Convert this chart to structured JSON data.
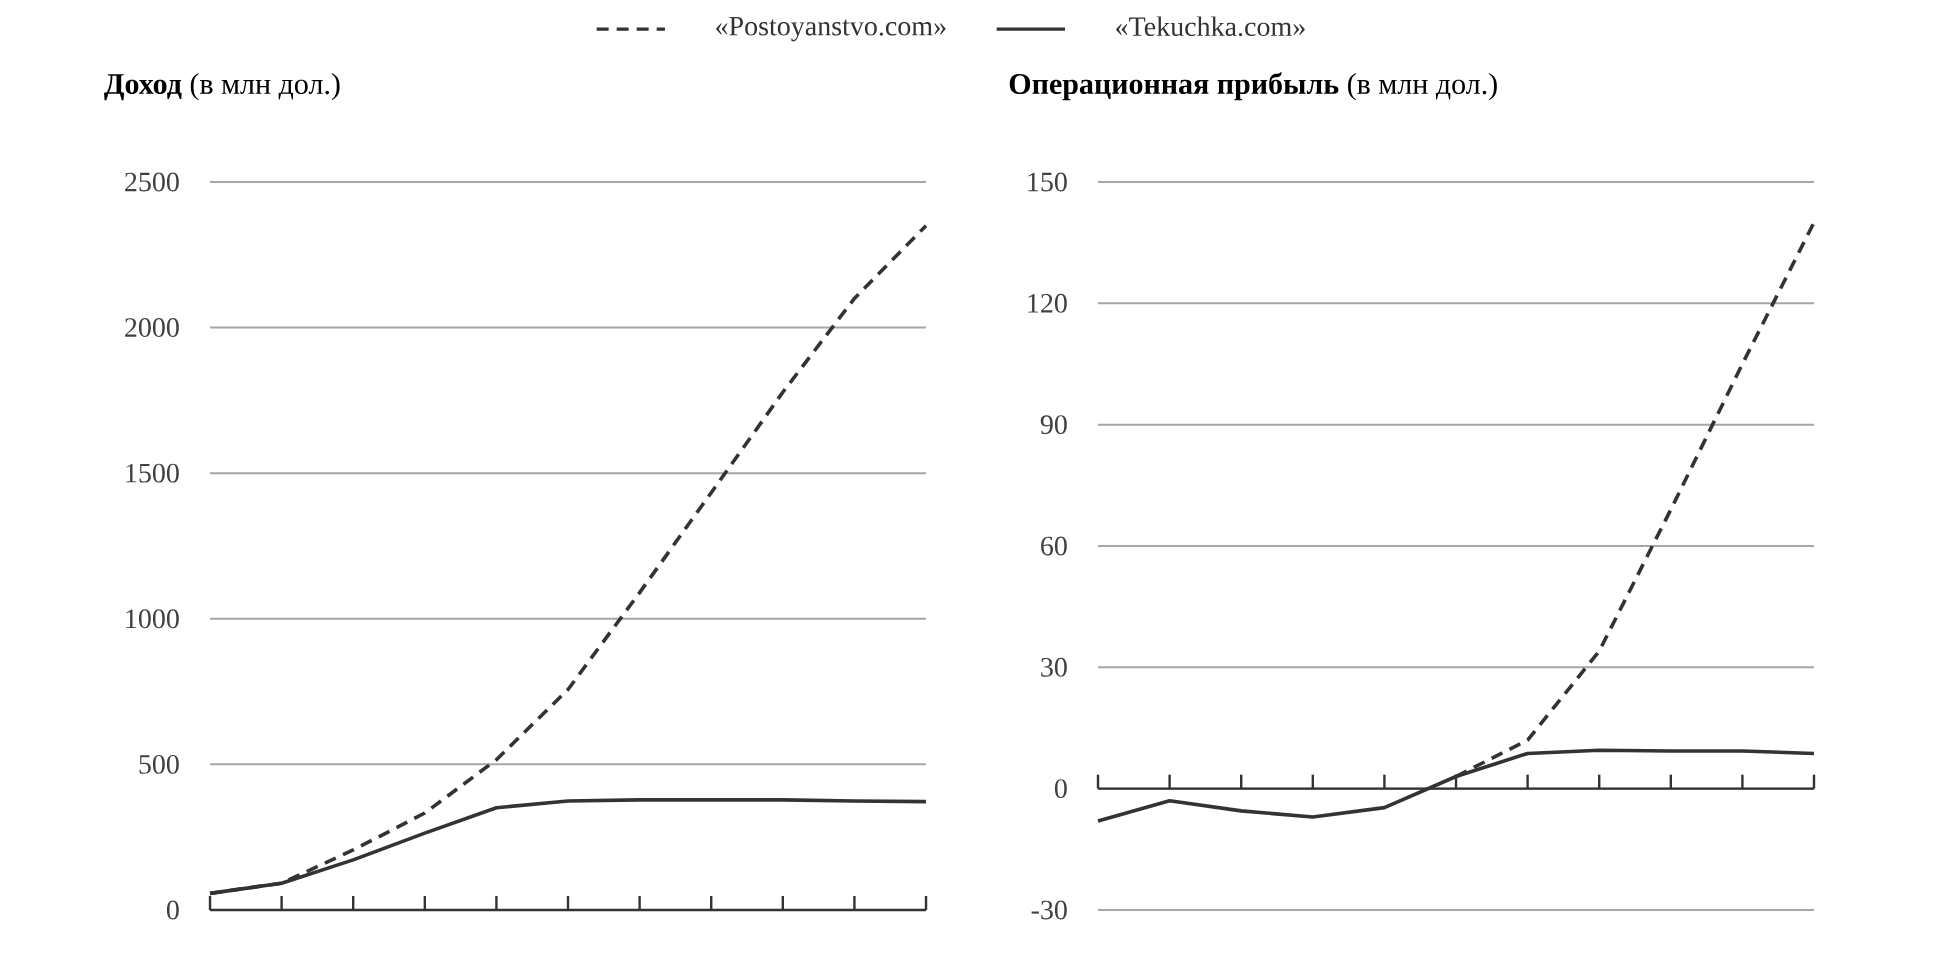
{
  "chart_data": [
    {
      "type": "line",
      "title": "**Доход** (в млн дол.)",
      "categories": [
        null,
        null,
        null,
        null,
        null,
        null,
        null,
        null,
        null,
        null,
        null
      ],
      "series": [
        {
          "name": "«Postoyanstvo.com»",
          "color": "#333333",
          "line_style": "dashed",
          "values": [
            57,
            92,
            206,
            333,
            516,
            757,
            1090,
            1433,
            1778,
            2100,
            2350
          ]
        },
        {
          "name": "«Tekuchka.com»",
          "color": "#333333",
          "line_style": "solid",
          "values": [
            57,
            92,
            172,
            264,
            351,
            374,
            378,
            378,
            378,
            374,
            372
          ]
        }
      ],
      "ylim": [
        0,
        2500
      ],
      "yticks": [
        0,
        500,
        1000,
        1500,
        2000,
        2500
      ],
      "grid": "y",
      "legend": "top",
      "tick_labels": "y",
      "marker": "none"
    },
    {
      "type": "line",
      "title": "**Операционная прибыль** (в млн дол.)",
      "categories": [
        null,
        null,
        null,
        null,
        null,
        null,
        null,
        null,
        null,
        null,
        null
      ],
      "series": [
        {
          "color": "#333333",
          "line_style": "dashed",
          "values": [
            null,
            null,
            null,
            null,
            null,
            3,
            12,
            34,
            69,
            105,
            140
          ]
        },
        {
          "color": "#333333",
          "line_style": "solid",
          "values": [
            -8,
            -3,
            -5.5,
            -7,
            -4.7,
            3,
            8.7,
            9.5,
            9.3,
            9.3,
            8.7
          ]
        }
      ],
      "ylim": [
        -30,
        150
      ],
      "yticks": [
        -30,
        0,
        30,
        60,
        90,
        120,
        150
      ],
      "grid": "y",
      "tick_labels": "y",
      "marker": "none"
    }
  ]
}
